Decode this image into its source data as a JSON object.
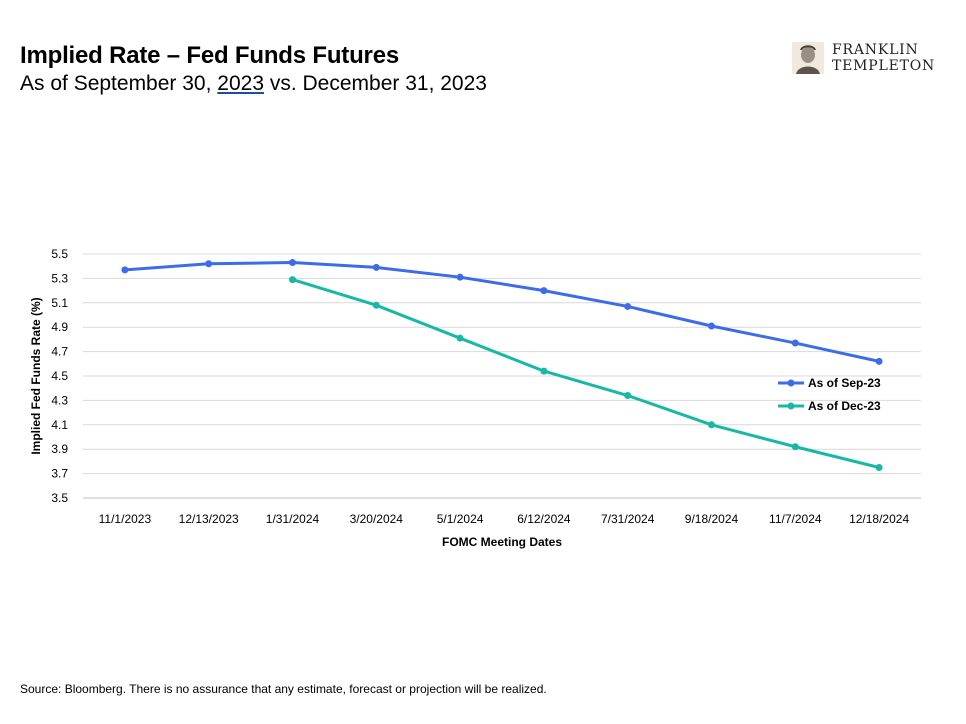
{
  "header": {
    "title": "Implied Rate – Fed Funds Futures",
    "subtitle_pre": "As of September 30, ",
    "subtitle_year": "2023",
    "subtitle_post": " vs. December 31, 2023"
  },
  "logo": {
    "line1": "FRANKLIN",
    "line2": "TEMPLETON"
  },
  "footer": {
    "source": "Source: Bloomberg. There is no assurance that any estimate, forecast or projection will be realized."
  },
  "colors": {
    "series1": "#3d6ce8",
    "series2": "#17b8a6",
    "grid": "#d9d9d9"
  },
  "chart_data": {
    "type": "line",
    "title": "",
    "xlabel": "FOMC Meeting Dates",
    "ylabel": "Implied Fed Funds Rate (%)",
    "ylim": [
      3.5,
      5.5
    ],
    "yticks": [
      "3.5",
      "3.7",
      "3.9",
      "4.1",
      "4.3",
      "4.5",
      "4.7",
      "4.9",
      "5.1",
      "5.3",
      "5.5"
    ],
    "grid": true,
    "legend_position": "right",
    "categories": [
      "11/1/2023",
      "12/13/2023",
      "1/31/2024",
      "3/20/2024",
      "5/1/2024",
      "6/12/2024",
      "7/31/2024",
      "9/18/2024",
      "11/7/2024",
      "12/18/2024"
    ],
    "series": [
      {
        "name": "As of Sep-23",
        "color": "#3d6ce8",
        "values": [
          5.37,
          5.42,
          5.43,
          5.39,
          5.31,
          5.2,
          5.07,
          4.91,
          4.77,
          4.62
        ]
      },
      {
        "name": "As of Dec-23",
        "color": "#17b8a6",
        "values": [
          null,
          null,
          5.29,
          5.08,
          4.81,
          4.54,
          4.34,
          4.1,
          3.92,
          3.75
        ]
      }
    ]
  }
}
